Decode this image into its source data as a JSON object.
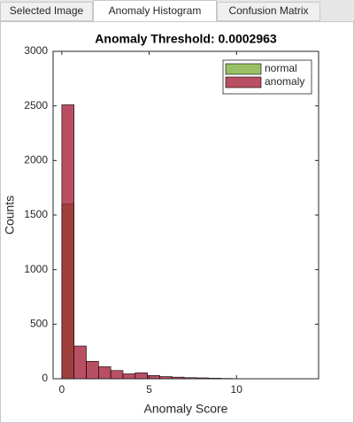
{
  "tabs": [
    "Selected Image",
    "Anomaly Histogram",
    "Confusion Matrix"
  ],
  "active_tab": 1,
  "chart_data": {
    "type": "histogram",
    "title": "Anomaly Threshold: 0.0002963",
    "x_label": "Anomaly Score",
    "y_label": "Counts",
    "bins": [
      0,
      0.7,
      1.4,
      2.1,
      2.8,
      3.5,
      4.2,
      4.9,
      5.6,
      6.3,
      7,
      7.7,
      8.4,
      9.1,
      9.8
    ],
    "series": [
      {
        "name": "normal",
        "color": "#77ac30",
        "values": [
          1600,
          0,
          0,
          0,
          0,
          0,
          0,
          0,
          0,
          0,
          0,
          0,
          0,
          0
        ]
      },
      {
        "name": "anomaly",
        "color": "#a2142f",
        "values": [
          2510,
          300,
          160,
          110,
          75,
          45,
          55,
          30,
          20,
          15,
          10,
          8,
          5,
          3
        ]
      }
    ],
    "xlim": [
      -0.5,
      14.7
    ],
    "ylim": [
      0,
      3000
    ],
    "xticks": [
      0,
      5,
      10
    ],
    "yticks": [
      0,
      500,
      1000,
      1500,
      2000,
      2500,
      3000
    ],
    "legend": "top-right",
    "face_alpha": 0.75
  }
}
